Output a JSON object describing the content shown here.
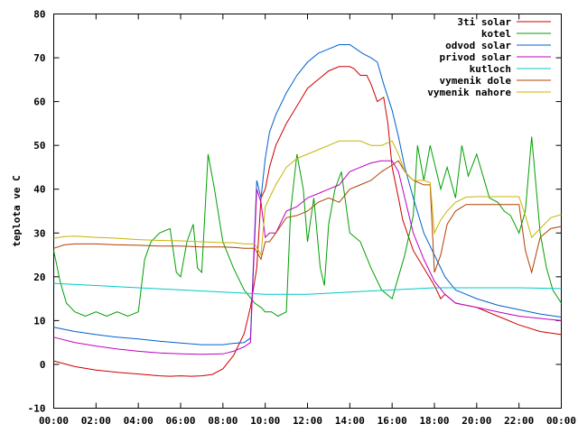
{
  "chart_data": {
    "type": "line",
    "ylabel": "teplota ve C",
    "xlabel": "",
    "ylim": [
      -10,
      80
    ],
    "xlim": [
      0,
      24
    ],
    "yticks": [
      -10,
      0,
      10,
      20,
      30,
      40,
      50,
      60,
      70,
      80
    ],
    "xtick_labels": [
      "00:00",
      "02:00",
      "04:00",
      "06:00",
      "08:00",
      "10:00",
      "12:00",
      "14:00",
      "16:00",
      "18:00",
      "20:00",
      "22:00",
      "00:00"
    ],
    "grid": false,
    "legend_position": "top-right",
    "series": [
      {
        "name": "3ti solar",
        "color": "#cc0000",
        "x": [
          0,
          1,
          2,
          3,
          4,
          5,
          5.5,
          6,
          6.5,
          7,
          7.5,
          8,
          8.5,
          9,
          9.3,
          9.6,
          9.8,
          10,
          10.2,
          10.5,
          11,
          11.5,
          12,
          12.5,
          13,
          13.5,
          14,
          14.2,
          14.5,
          14.8,
          15,
          15.3,
          15.6,
          15.8,
          16,
          16.3,
          16.5,
          17,
          17.5,
          18,
          18.3,
          18.5,
          19,
          20,
          21,
          22,
          23,
          24
        ],
        "y": [
          0.8,
          -0.5,
          -1.3,
          -1.8,
          -2.2,
          -2.6,
          -2.7,
          -2.6,
          -2.7,
          -2.6,
          -2.3,
          -1,
          2,
          7,
          13,
          22,
          38,
          40,
          45,
          50,
          55,
          59,
          63,
          65,
          67,
          68,
          68,
          67.5,
          66,
          66,
          64,
          60,
          61,
          55,
          45,
          38,
          33,
          26,
          22,
          18,
          15,
          16,
          14,
          13,
          11,
          9,
          7.5,
          6.8
        ]
      },
      {
        "name": "kotel",
        "color": "#00a000",
        "x": [
          0,
          0.3,
          0.6,
          1,
          1.5,
          2,
          2.5,
          3,
          3.5,
          4,
          4.3,
          4.6,
          5,
          5.5,
          5.8,
          6,
          6.3,
          6.6,
          6.8,
          7,
          7.3,
          7.6,
          8,
          8.5,
          9,
          9.5,
          9.8,
          10,
          10.3,
          10.6,
          11,
          11.2,
          11.5,
          11.8,
          12,
          12.3,
          12.6,
          12.8,
          13,
          13.3,
          13.6,
          14,
          14.5,
          15,
          15.5,
          16,
          16.3,
          16.6,
          17,
          17.2,
          17.5,
          17.8,
          18,
          18.3,
          18.6,
          19,
          19.3,
          19.6,
          20,
          20.3,
          20.6,
          21,
          21.3,
          21.6,
          22,
          22.3,
          22.6,
          23,
          23.3,
          23.6,
          24
        ],
        "y": [
          26,
          19,
          14,
          12,
          11,
          12,
          11,
          12,
          11,
          12,
          24,
          28,
          30,
          31,
          21,
          20,
          28,
          32,
          22,
          21,
          48,
          40,
          28,
          22,
          17,
          14,
          13,
          12,
          12,
          11,
          12,
          35,
          48,
          40,
          28,
          38,
          22,
          18,
          32,
          40,
          44,
          30,
          28,
          22,
          17,
          15,
          20,
          25,
          34,
          50,
          42,
          50,
          46,
          40,
          45,
          38,
          50,
          43,
          48,
          43,
          38,
          37,
          35,
          34,
          30,
          35,
          52,
          30,
          22,
          17,
          14
        ]
      },
      {
        "name": "odvod solar",
        "color": "#0060d0",
        "x": [
          0,
          1,
          2,
          3,
          4,
          5,
          6,
          7,
          8,
          8.5,
          9,
          9.3,
          9.6,
          9.8,
          10,
          10.2,
          10.5,
          11,
          11.5,
          12,
          12.5,
          13,
          13.5,
          14,
          14.3,
          14.6,
          15,
          15.3,
          15.6,
          16,
          16.3,
          16.6,
          17,
          17.5,
          18,
          18.5,
          19,
          20,
          21,
          22,
          23,
          24
        ],
        "y": [
          8.5,
          7.5,
          6.8,
          6.2,
          5.8,
          5.3,
          4.9,
          4.5,
          4.5,
          4.8,
          5,
          6,
          42,
          38,
          47,
          53,
          57,
          62,
          66,
          69,
          71,
          72,
          73,
          73,
          72,
          71,
          70,
          69,
          64,
          58,
          52,
          45,
          38,
          30,
          25,
          20,
          17,
          15,
          13.5,
          12.5,
          11.5,
          10.8
        ]
      },
      {
        "name": "privod solar",
        "color": "#c000c0",
        "x": [
          0,
          1,
          2,
          3,
          4,
          5,
          6,
          7,
          8,
          8.5,
          9,
          9.3,
          9.6,
          9.8,
          10,
          10.2,
          10.5,
          11,
          11.5,
          12,
          12.5,
          13,
          13.5,
          14,
          14.5,
          15,
          15.5,
          16,
          16.3,
          16.6,
          17,
          17.5,
          18,
          18.5,
          19,
          20,
          21,
          22,
          23,
          24
        ],
        "y": [
          6.2,
          5,
          4.2,
          3.5,
          3,
          2.6,
          2.4,
          2.3,
          2.4,
          3,
          4,
          5,
          40,
          37,
          29,
          30,
          30,
          35,
          36,
          38,
          39,
          40,
          41,
          44,
          45,
          46,
          46.5,
          46.5,
          44,
          38,
          30,
          24,
          19,
          16,
          14,
          13,
          12,
          11,
          10.5,
          10
        ]
      },
      {
        "name": "kutloch",
        "color": "#00c8c8",
        "x": [
          0,
          2,
          4,
          6,
          8,
          10,
          12,
          14,
          16,
          18,
          20,
          22,
          24
        ],
        "y": [
          18.5,
          18,
          17.5,
          17,
          16.5,
          16,
          16,
          16.5,
          17,
          17.5,
          17.5,
          17.5,
          17.3
        ]
      },
      {
        "name": "vymenik dole",
        "color": "#b04000",
        "x": [
          0,
          0.5,
          1,
          2,
          3,
          4,
          5,
          6,
          7,
          8,
          8.5,
          9,
          9.5,
          9.8,
          10,
          10.2,
          10.5,
          11,
          11.5,
          12,
          12.5,
          13,
          13.5,
          14,
          14.5,
          15,
          15.5,
          16,
          16.3,
          16.6,
          17,
          17.5,
          17.8,
          18,
          18.3,
          18.6,
          19,
          19.5,
          20,
          21,
          21.5,
          22,
          22.3,
          22.6,
          23,
          23.5,
          24
        ],
        "y": [
          26.5,
          27.3,
          27.5,
          27.5,
          27.3,
          27.2,
          27,
          27,
          26.8,
          26.8,
          26.7,
          26.5,
          26.5,
          24,
          28,
          28,
          30,
          33.5,
          34,
          35,
          37,
          38,
          37,
          40,
          41,
          42,
          44,
          45.5,
          46.5,
          44,
          42,
          41,
          41,
          21,
          25,
          32,
          35,
          36.5,
          36.5,
          36.5,
          36.5,
          36.5,
          26,
          21,
          29,
          31,
          31.5
        ]
      },
      {
        "name": "vymenik nahore",
        "color": "#c8b400",
        "x": [
          0,
          0.5,
          1,
          2,
          3,
          4,
          5,
          6,
          7,
          8,
          8.5,
          9,
          9.5,
          9.8,
          10,
          10.2,
          10.5,
          11,
          11.5,
          12,
          12.5,
          13,
          13.5,
          14,
          14.5,
          15,
          15.5,
          16,
          16.3,
          16.6,
          17,
          17.5,
          17.8,
          18,
          18.3,
          18.6,
          19,
          19.5,
          20,
          21,
          21.5,
          22,
          22.3,
          22.6,
          23,
          23.5,
          24
        ],
        "y": [
          28.8,
          29.2,
          29.3,
          29,
          28.8,
          28.5,
          28.3,
          28.2,
          28,
          27.8,
          27.8,
          27.5,
          27.5,
          25,
          36,
          38,
          41,
          45,
          47,
          48,
          49,
          50,
          51,
          51,
          51,
          50,
          50,
          51,
          48,
          44,
          42,
          42,
          41.5,
          30,
          33,
          35,
          37,
          38.2,
          38.3,
          38.3,
          38.3,
          38.3,
          34,
          29,
          31,
          33.5,
          34.2
        ]
      }
    ]
  }
}
